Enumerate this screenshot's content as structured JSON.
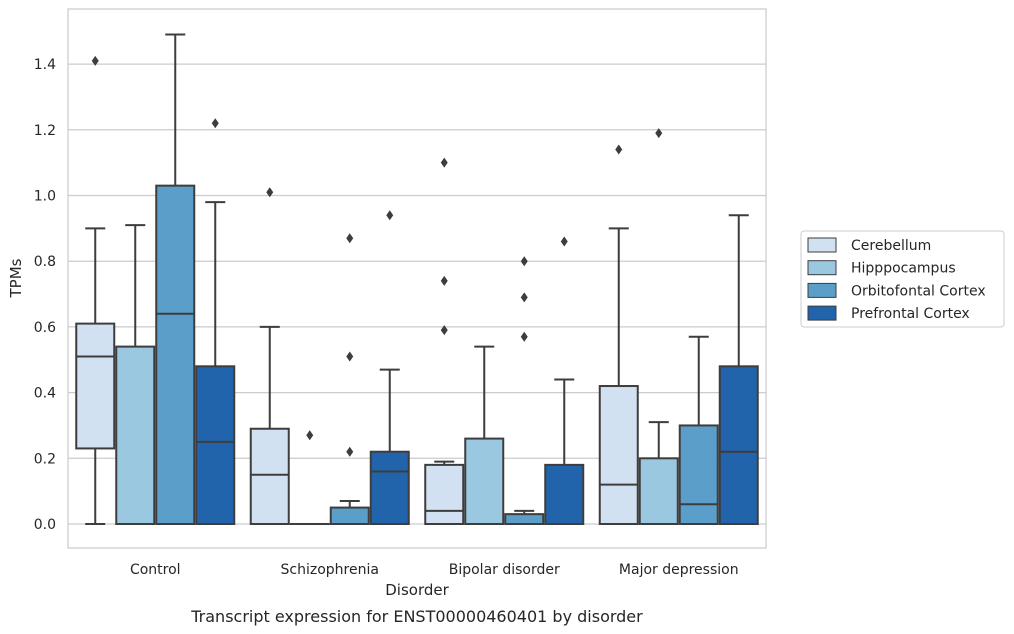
{
  "caption": "Transcript expression for ENST00000460401 by disorder",
  "chart_data": {
    "type": "box",
    "xlabel": "Disorder",
    "ylabel": "TPMs",
    "ylim": [
      -0.07,
      1.57
    ],
    "yticks": [
      0.0,
      0.2,
      0.4,
      0.6,
      0.8,
      1.0,
      1.2,
      1.4
    ],
    "ytick_labels": [
      "0.0",
      "0.2",
      "0.4",
      "0.6",
      "0.8",
      "1.0",
      "1.2",
      "1.4"
    ],
    "grid": "horizontal",
    "legend_position": "right",
    "categories": [
      "Control",
      "Schizophrenia",
      "Bipolar disorder",
      "Major depression"
    ],
    "series": [
      {
        "name": "Cerebellum",
        "color": "#d1e1f1",
        "boxes": [
          {
            "whisker_low": 0.0,
            "q1": 0.23,
            "median": 0.51,
            "q3": 0.61,
            "whisker_high": 0.9,
            "outliers": [
              1.41
            ]
          },
          {
            "whisker_low": 0.0,
            "q1": 0.0,
            "median": 0.15,
            "q3": 0.29,
            "whisker_high": 0.6,
            "outliers": [
              1.01
            ]
          },
          {
            "whisker_low": 0.0,
            "q1": 0.0,
            "median": 0.04,
            "q3": 0.18,
            "whisker_high": 0.19,
            "outliers": [
              0.59,
              0.74,
              1.1
            ]
          },
          {
            "whisker_low": 0.0,
            "q1": 0.0,
            "median": 0.12,
            "q3": 0.42,
            "whisker_high": 0.9,
            "outliers": [
              1.14
            ]
          }
        ]
      },
      {
        "name": "Hipppocampus",
        "color": "#9ac8e0",
        "boxes": [
          {
            "whisker_low": 0.0,
            "q1": 0.0,
            "median": 0.0,
            "q3": 0.54,
            "whisker_high": 0.91,
            "outliers": []
          },
          {
            "whisker_low": 0.0,
            "q1": 0.0,
            "median": 0.0,
            "q3": 0.0,
            "whisker_high": 0.0,
            "outliers": [
              0.27
            ]
          },
          {
            "whisker_low": 0.0,
            "q1": 0.0,
            "median": 0.0,
            "q3": 0.26,
            "whisker_high": 0.54,
            "outliers": []
          },
          {
            "whisker_low": 0.0,
            "q1": 0.0,
            "median": 0.0,
            "q3": 0.2,
            "whisker_high": 0.31,
            "outliers": [
              1.19
            ]
          }
        ]
      },
      {
        "name": "Orbitofontal Cortex",
        "color": "#5a9ec9",
        "boxes": [
          {
            "whisker_low": 0.0,
            "q1": 0.0,
            "median": 0.64,
            "q3": 1.03,
            "whisker_high": 1.49,
            "outliers": []
          },
          {
            "whisker_low": 0.0,
            "q1": 0.0,
            "median": 0.0,
            "q3": 0.05,
            "whisker_high": 0.07,
            "outliers": [
              0.22,
              0.51,
              0.87
            ]
          },
          {
            "whisker_low": 0.0,
            "q1": 0.0,
            "median": 0.0,
            "q3": 0.03,
            "whisker_high": 0.04,
            "outliers": [
              0.57,
              0.69,
              0.8
            ]
          },
          {
            "whisker_low": 0.0,
            "q1": 0.0,
            "median": 0.06,
            "q3": 0.3,
            "whisker_high": 0.57,
            "outliers": []
          }
        ]
      },
      {
        "name": "Prefrontal Cortex",
        "color": "#2264ac",
        "boxes": [
          {
            "whisker_low": 0.0,
            "q1": 0.0,
            "median": 0.25,
            "q3": 0.48,
            "whisker_high": 0.98,
            "outliers": [
              1.22
            ]
          },
          {
            "whisker_low": 0.0,
            "q1": 0.0,
            "median": 0.16,
            "q3": 0.22,
            "whisker_high": 0.47,
            "outliers": [
              0.94
            ]
          },
          {
            "whisker_low": 0.0,
            "q1": 0.0,
            "median": 0.0,
            "q3": 0.18,
            "whisker_high": 0.44,
            "outliers": [
              0.86
            ]
          },
          {
            "whisker_low": 0.0,
            "q1": 0.0,
            "median": 0.22,
            "q3": 0.48,
            "whisker_high": 0.94,
            "outliers": []
          }
        ]
      }
    ]
  }
}
